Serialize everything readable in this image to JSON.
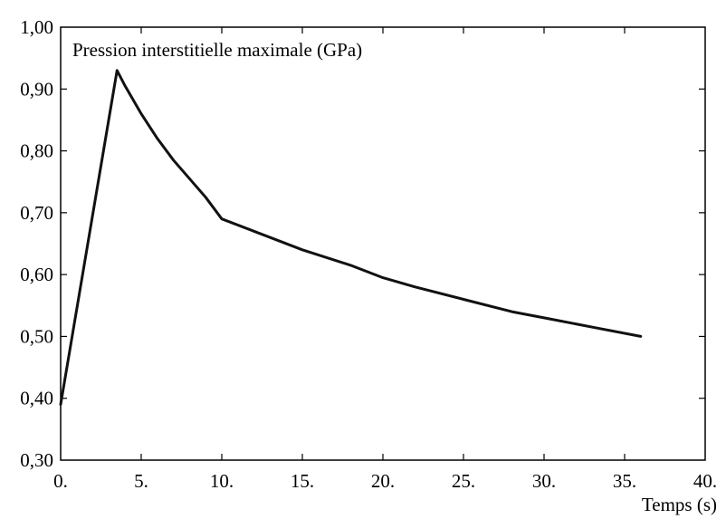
{
  "chart_data": {
    "type": "line",
    "title": "Pression interstitielle maximale (GPa)",
    "xlabel": "Temps (s)",
    "ylabel": "",
    "xlim": [
      0,
      40
    ],
    "ylim": [
      0.3,
      1.0
    ],
    "x_ticks": [
      0,
      5,
      10,
      15,
      20,
      25,
      30,
      35,
      40
    ],
    "x_tick_labels": [
      "0.",
      "5.",
      "10.",
      "15.",
      "20.",
      "25.",
      "30.",
      "35.",
      "40."
    ],
    "y_ticks": [
      0.3,
      0.4,
      0.5,
      0.6,
      0.7,
      0.8,
      0.9,
      1.0
    ],
    "y_tick_labels": [
      "0,30",
      "0,40",
      "0,50",
      "0,60",
      "0,70",
      "0,80",
      "0,90",
      "1,00"
    ],
    "grid": false,
    "series": [
      {
        "x": [
          0,
          3.5,
          4,
          5,
          6,
          7,
          8,
          9,
          10,
          12,
          15,
          18,
          20,
          22,
          25,
          28,
          30,
          33,
          36
        ],
        "y": [
          0.39,
          0.93,
          0.905,
          0.86,
          0.82,
          0.785,
          0.755,
          0.725,
          0.69,
          0.67,
          0.64,
          0.615,
          0.595,
          0.58,
          0.56,
          0.54,
          0.53,
          0.515,
          0.5
        ],
        "color": "#111111"
      }
    ]
  }
}
